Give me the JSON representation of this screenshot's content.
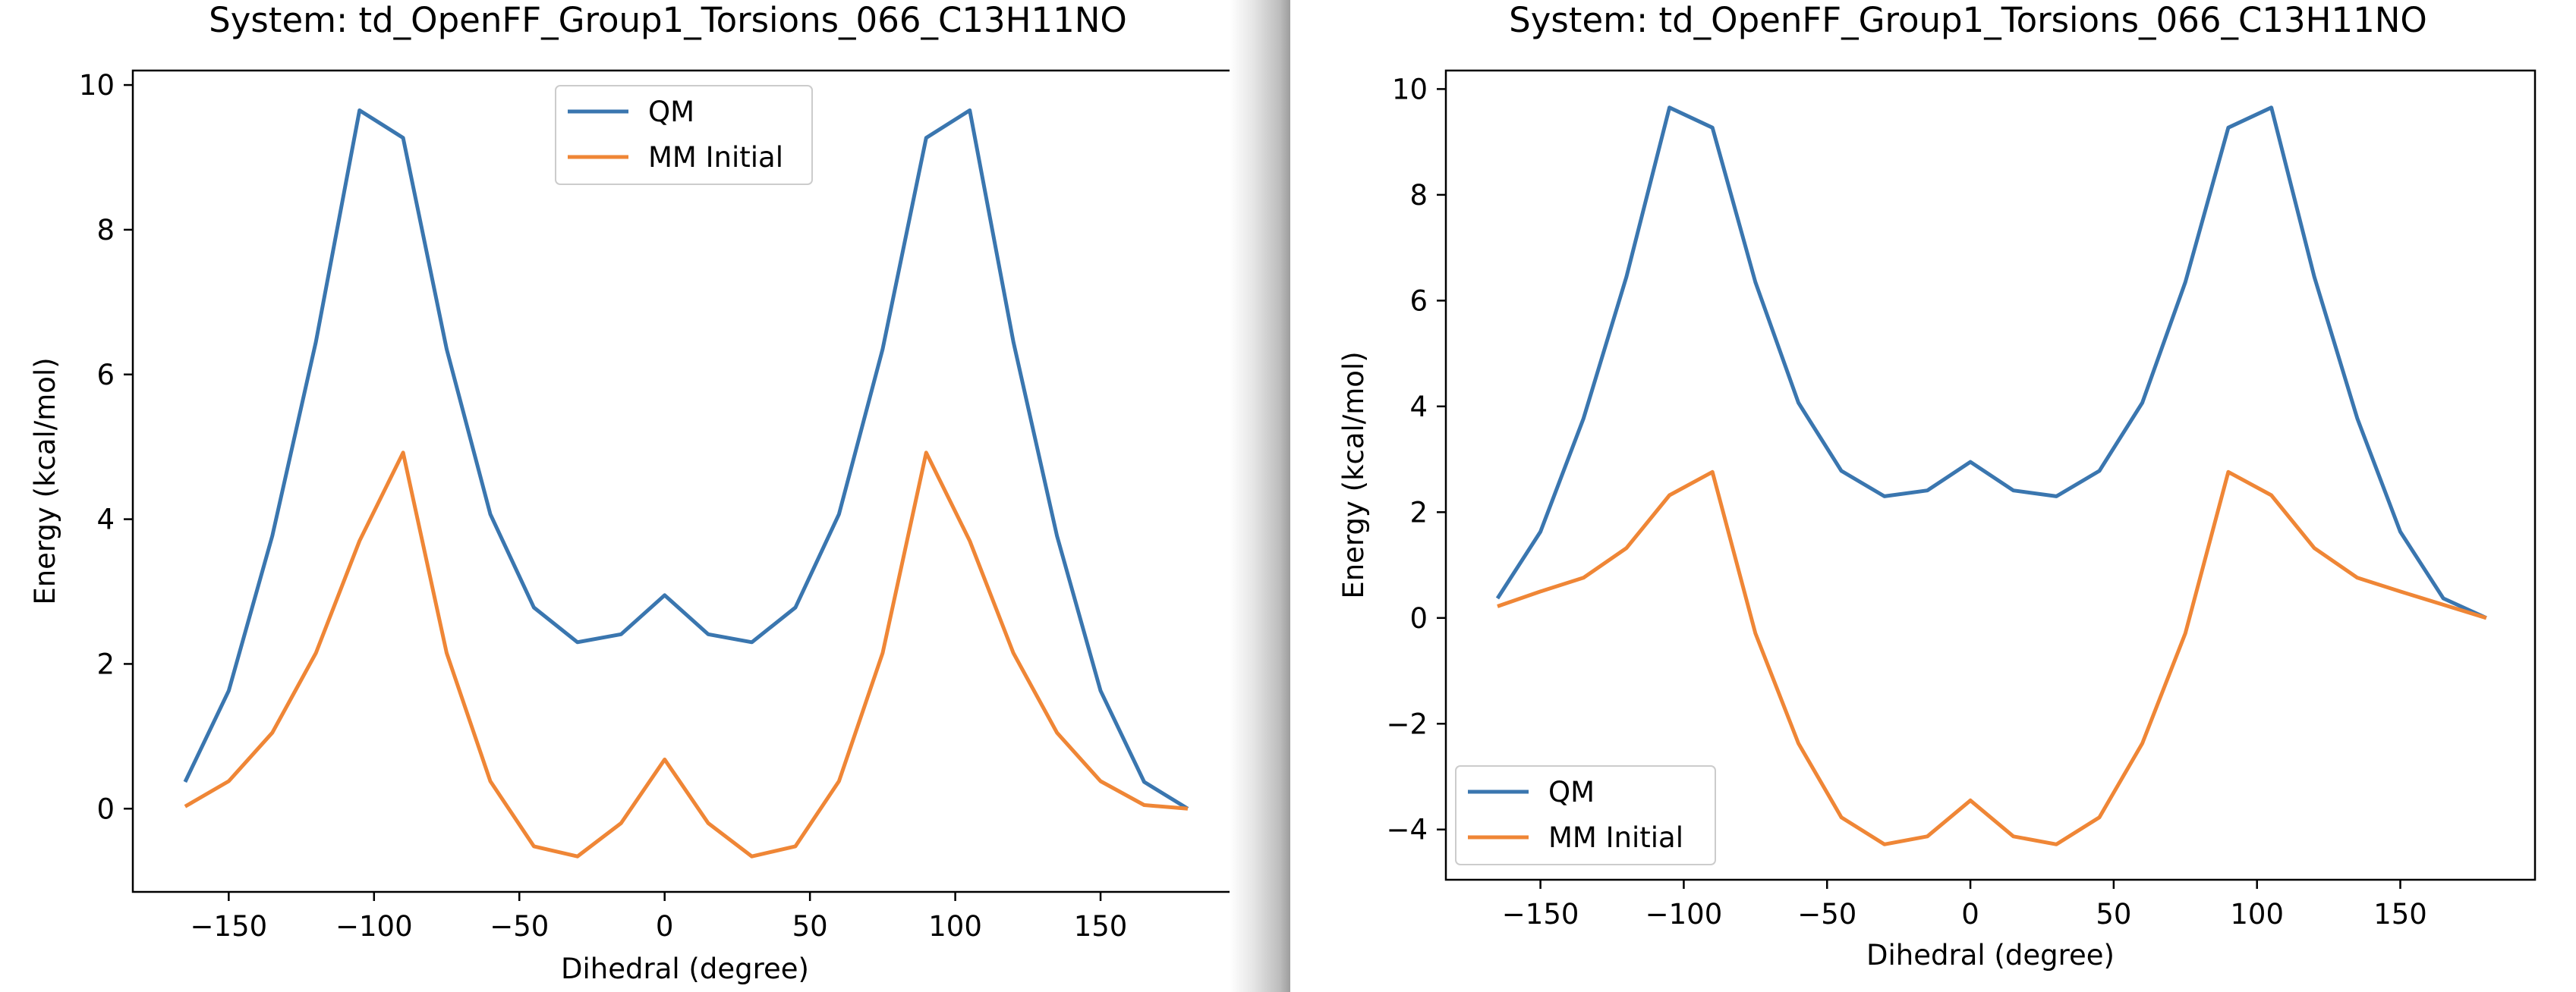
{
  "chart_data": [
    {
      "type": "line",
      "title": "System: td_OpenFF_Group1_Torsions_066_C13H11NO",
      "xlabel": "Dihedral (degree)",
      "ylabel": "Energy (kcal/mol)",
      "xlim": [
        -183,
        197
      ],
      "ylim": [
        -1.15,
        10.2
      ],
      "xticks": [
        -150,
        -100,
        -50,
        0,
        50,
        100,
        150
      ],
      "yticks": [
        0,
        2,
        4,
        6,
        8,
        10
      ],
      "legend_loc": "upper center",
      "x": [
        -165,
        -150,
        -135,
        -120,
        -105,
        -90,
        -75,
        -60,
        -45,
        -30,
        -15,
        0,
        15,
        30,
        45,
        60,
        75,
        90,
        105,
        120,
        135,
        150,
        165,
        180
      ],
      "series": [
        {
          "name": "QM",
          "color": "#3a76af",
          "values": [
            0.37,
            1.63,
            3.77,
            6.45,
            9.65,
            9.27,
            6.35,
            4.07,
            2.78,
            2.3,
            2.41,
            2.95,
            2.41,
            2.3,
            2.78,
            4.07,
            6.35,
            9.27,
            9.65,
            6.45,
            3.77,
            1.63,
            0.37,
            0.0
          ]
        },
        {
          "name": "MM Initial",
          "color": "#ef8636",
          "values": [
            0.03,
            0.38,
            1.05,
            2.15,
            3.7,
            4.92,
            2.15,
            0.38,
            -0.52,
            -0.66,
            -0.2,
            0.68,
            -0.2,
            -0.66,
            -0.52,
            0.38,
            2.15,
            4.92,
            3.7,
            2.15,
            1.05,
            0.38,
            0.05,
            0.0
          ]
        }
      ]
    },
    {
      "type": "line",
      "title": "System: td_OpenFF_Group1_Torsions_066_C13H11NO",
      "xlabel": "Dihedral (degree)",
      "ylabel": "Energy (kcal/mol)",
      "xlim": [
        -183,
        197
      ],
      "ylim": [
        -4.95,
        10.35
      ],
      "xticks": [
        -150,
        -100,
        -50,
        0,
        50,
        100,
        150
      ],
      "yticks": [
        -4,
        -2,
        0,
        2,
        4,
        6,
        8,
        10
      ],
      "legend_loc": "lower left",
      "x": [
        -165,
        -150,
        -135,
        -120,
        -105,
        -90,
        -75,
        -60,
        -45,
        -30,
        -15,
        0,
        15,
        30,
        45,
        60,
        75,
        90,
        105,
        120,
        135,
        150,
        165,
        180
      ],
      "series": [
        {
          "name": "QM",
          "color": "#3a76af",
          "values": [
            0.37,
            1.63,
            3.77,
            6.45,
            9.65,
            9.27,
            6.35,
            4.07,
            2.78,
            2.3,
            2.41,
            2.95,
            2.41,
            2.3,
            2.78,
            4.07,
            6.35,
            9.27,
            9.65,
            6.45,
            3.77,
            1.63,
            0.37,
            0.0
          ]
        },
        {
          "name": "MM Initial",
          "color": "#ef8636",
          "values": [
            0.22,
            0.5,
            0.76,
            1.32,
            2.32,
            2.76,
            -0.29,
            -2.37,
            -3.77,
            -4.28,
            -4.13,
            -3.45,
            -4.13,
            -4.28,
            -3.77,
            -2.37,
            -0.29,
            2.76,
            2.32,
            1.32,
            0.76,
            0.5,
            0.25,
            0.0
          ]
        }
      ]
    }
  ]
}
